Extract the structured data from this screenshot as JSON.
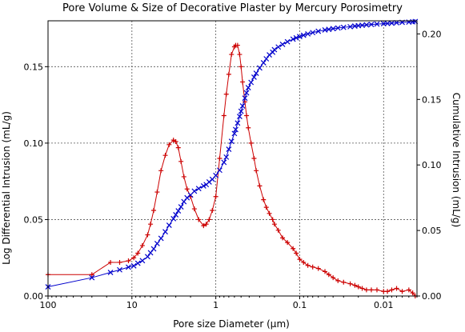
{
  "chart_data": {
    "type": "line",
    "title": "Pore Volume & Size of Decorative Plaster by Mercury Porosimetry",
    "xlabel": "Pore size Diameter (µm)",
    "ylabel_left": "Log Differential Intrusion (mL/g)",
    "ylabel_right": "Cumulative Intrusion (mL/g)",
    "x_scale": "log",
    "x_reversed": true,
    "xlim": [
      100,
      0.004
    ],
    "ylim_left": [
      0,
      0.18
    ],
    "ylim_right": [
      0,
      0.21
    ],
    "grid": true,
    "x_ticks": [
      {
        "value": 100,
        "label": "100"
      },
      {
        "value": 10,
        "label": "10"
      },
      {
        "value": 1,
        "label": "1"
      },
      {
        "value": 0.1,
        "label": "0.1"
      },
      {
        "value": 0.01,
        "label": "0.01"
      }
    ],
    "y_left_ticks": [
      {
        "value": 0,
        "label": "0.00"
      },
      {
        "value": 0.05,
        "label": "0.05"
      },
      {
        "value": 0.1,
        "label": "0.10"
      },
      {
        "value": 0.15,
        "label": "0.15"
      }
    ],
    "y_right_ticks": [
      {
        "value": 0,
        "label": "0.00"
      },
      {
        "value": 0.05,
        "label": "0.05"
      },
      {
        "value": 0.1,
        "label": "0.10"
      },
      {
        "value": 0.15,
        "label": "0.15"
      },
      {
        "value": 0.2,
        "label": "0.20"
      }
    ],
    "series": [
      {
        "axis": "left",
        "color": "#cc0000",
        "marker": "plus",
        "x": [
          100,
          30,
          18,
          14,
          11,
          9.5,
          8.5,
          7.5,
          6.5,
          6,
          5.5,
          5,
          4.5,
          4,
          3.6,
          3.2,
          3,
          2.8,
          2.6,
          2.4,
          2.2,
          2.0,
          1.8,
          1.6,
          1.4,
          1.3,
          1.2,
          1.1,
          1.0,
          0.9,
          0.8,
          0.75,
          0.7,
          0.65,
          0.6,
          0.58,
          0.55,
          0.52,
          0.5,
          0.48,
          0.45,
          0.43,
          0.41,
          0.38,
          0.35,
          0.33,
          0.3,
          0.27,
          0.25,
          0.23,
          0.21,
          0.2,
          0.18,
          0.16,
          0.14,
          0.12,
          0.11,
          0.1,
          0.09,
          0.08,
          0.07,
          0.06,
          0.05,
          0.045,
          0.04,
          0.035,
          0.03,
          0.025,
          0.022,
          0.02,
          0.018,
          0.016,
          0.014,
          0.012,
          0.01,
          0.009,
          0.008,
          0.007,
          0.006,
          0.005,
          0.0045,
          0.0042
        ],
        "y": [
          0.014,
          0.014,
          0.022,
          0.022,
          0.023,
          0.025,
          0.028,
          0.033,
          0.04,
          0.047,
          0.056,
          0.068,
          0.082,
          0.092,
          0.099,
          0.102,
          0.101,
          0.097,
          0.088,
          0.078,
          0.07,
          0.065,
          0.057,
          0.05,
          0.046,
          0.047,
          0.05,
          0.056,
          0.065,
          0.09,
          0.118,
          0.132,
          0.145,
          0.158,
          0.163,
          0.164,
          0.164,
          0.158,
          0.15,
          0.14,
          0.127,
          0.118,
          0.11,
          0.1,
          0.09,
          0.082,
          0.072,
          0.063,
          0.058,
          0.054,
          0.05,
          0.047,
          0.043,
          0.038,
          0.035,
          0.031,
          0.028,
          0.024,
          0.022,
          0.02,
          0.019,
          0.018,
          0.016,
          0.014,
          0.012,
          0.01,
          0.009,
          0.008,
          0.007,
          0.006,
          0.005,
          0.004,
          0.004,
          0.004,
          0.003,
          0.003,
          0.004,
          0.005,
          0.003,
          0.004,
          0.002,
          0.0
        ]
      },
      {
        "axis": "right",
        "color": "#0000cc",
        "marker": "x",
        "x": [
          100,
          30,
          18,
          14,
          11,
          9.5,
          8.5,
          7.5,
          6.5,
          6,
          5.5,
          5,
          4.5,
          4,
          3.6,
          3.2,
          3,
          2.8,
          2.6,
          2.4,
          2.2,
          2.0,
          1.8,
          1.6,
          1.4,
          1.3,
          1.2,
          1.1,
          1.0,
          0.9,
          0.8,
          0.75,
          0.7,
          0.65,
          0.6,
          0.58,
          0.55,
          0.52,
          0.5,
          0.48,
          0.45,
          0.43,
          0.41,
          0.38,
          0.35,
          0.33,
          0.3,
          0.27,
          0.25,
          0.23,
          0.21,
          0.2,
          0.18,
          0.16,
          0.14,
          0.12,
          0.11,
          0.1,
          0.09,
          0.08,
          0.07,
          0.06,
          0.05,
          0.045,
          0.04,
          0.035,
          0.03,
          0.025,
          0.022,
          0.02,
          0.018,
          0.016,
          0.014,
          0.012,
          0.01,
          0.009,
          0.008,
          0.007,
          0.006,
          0.005,
          0.0045,
          0.0042
        ],
        "y": [
          0.007,
          0.014,
          0.018,
          0.02,
          0.022,
          0.023,
          0.025,
          0.027,
          0.03,
          0.033,
          0.036,
          0.04,
          0.044,
          0.049,
          0.054,
          0.059,
          0.062,
          0.065,
          0.068,
          0.072,
          0.075,
          0.077,
          0.08,
          0.082,
          0.084,
          0.085,
          0.087,
          0.089,
          0.092,
          0.096,
          0.102,
          0.106,
          0.112,
          0.118,
          0.124,
          0.127,
          0.132,
          0.137,
          0.141,
          0.145,
          0.151,
          0.155,
          0.159,
          0.163,
          0.167,
          0.17,
          0.174,
          0.178,
          0.181,
          0.184,
          0.186,
          0.188,
          0.19,
          0.192,
          0.194,
          0.196,
          0.197,
          0.198,
          0.199,
          0.2,
          0.201,
          0.202,
          0.203,
          0.2035,
          0.204,
          0.2045,
          0.205,
          0.2055,
          0.206,
          0.2063,
          0.2066,
          0.2069,
          0.2072,
          0.2075,
          0.2078,
          0.208,
          0.2082,
          0.2085,
          0.2088,
          0.209,
          0.2092,
          0.2094
        ]
      }
    ]
  }
}
